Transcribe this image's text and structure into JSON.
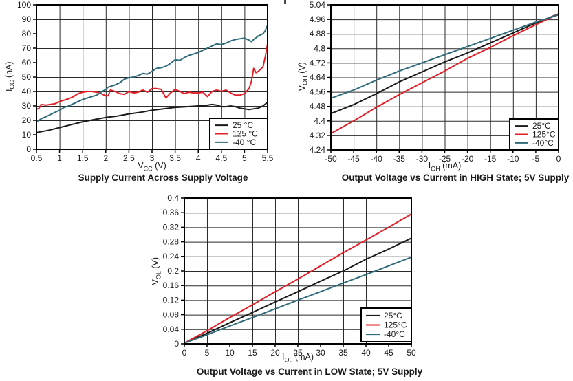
{
  "style": {
    "grid_color": "#2b2b2b",
    "axis_color": "#000000",
    "text_color": "#1a1a1a",
    "legend_bg": "#ffffff",
    "legend_border": "#000000",
    "series_black": "#1a1a1a",
    "series_red": "#e21f26",
    "series_teal": "#2f6b7a"
  },
  "chart_data": [
    {
      "type": "line",
      "title": "Supply Current Across Supply Voltage",
      "xlabel": {
        "sym": "V",
        "sub": "CC",
        "unit": " (V)"
      },
      "ylabel": {
        "sym": "I",
        "sub": "CC",
        "unit": " (nA)"
      },
      "xlim": [
        0.5,
        5.5
      ],
      "ylim": [
        0,
        100
      ],
      "xtick_values": [
        0.5,
        1,
        1.5,
        2,
        2.5,
        3,
        3.5,
        4,
        4.5,
        5,
        5.5
      ],
      "xtick_labels": [
        "0.5",
        "1",
        "1.5",
        "2",
        "2.5",
        "3",
        "3.5",
        "4",
        "4.5",
        "5",
        "5.5"
      ],
      "ytick_values": [
        0,
        10,
        20,
        30,
        40,
        50,
        60,
        70,
        80,
        90,
        100
      ],
      "ytick_labels": [
        "0",
        "10",
        "20",
        "30",
        "40",
        "50",
        "60",
        "70",
        "80",
        "90",
        "100"
      ],
      "grid": true,
      "legend_position": "lower right",
      "series": [
        {
          "name": "25 °C",
          "color": "#1a1a1a",
          "x": [
            0.5,
            0.75,
            1,
            1.25,
            1.5,
            1.75,
            2,
            2.25,
            2.5,
            2.75,
            3,
            3.25,
            3.5,
            3.75,
            4,
            4.1,
            4.2,
            4.3,
            4.4,
            4.5,
            4.6,
            4.7,
            4.8,
            4.9,
            5,
            5.1,
            5.2,
            5.3,
            5.4,
            5.5
          ],
          "y": [
            11.5,
            13,
            15,
            17,
            19,
            20.5,
            22,
            23,
            24.5,
            25.5,
            27,
            28,
            29,
            29.5,
            30,
            30,
            30.5,
            31,
            30.5,
            29.5,
            29.5,
            30,
            29.5,
            28.5,
            28,
            27.5,
            28,
            28.5,
            30,
            32.5
          ]
        },
        {
          "name": "125 °C",
          "color": "#e21f26",
          "x": [
            0.5,
            0.55,
            0.6,
            0.7,
            0.8,
            0.9,
            1,
            1.1,
            1.2,
            1.3,
            1.4,
            1.5,
            1.6,
            1.7,
            1.8,
            1.9,
            2,
            2.05,
            2.1,
            2.2,
            2.3,
            2.4,
            2.5,
            2.6,
            2.7,
            2.8,
            2.9,
            3,
            3.1,
            3.2,
            3.3,
            3.4,
            3.5,
            3.6,
            3.7,
            3.8,
            3.9,
            4,
            4.1,
            4.2,
            4.3,
            4.4,
            4.5,
            4.6,
            4.7,
            4.8,
            4.9,
            5,
            5.1,
            5.15,
            5.2,
            5.25,
            5.3,
            5.4,
            5.45,
            5.5
          ],
          "y": [
            28,
            28,
            31,
            30.5,
            31,
            31.5,
            33,
            34,
            35,
            36.5,
            38.5,
            39.5,
            40,
            40,
            39.5,
            38.5,
            37,
            37,
            41,
            40,
            38.5,
            38,
            40,
            39,
            39.5,
            41,
            39.5,
            42,
            42,
            41.5,
            35.5,
            39,
            41.5,
            40,
            38.5,
            39.5,
            39,
            39,
            39.5,
            36.5,
            40,
            41,
            40,
            41,
            39,
            37.5,
            37.5,
            38.5,
            42,
            47,
            56,
            53,
            54,
            57,
            64,
            73
          ]
        },
        {
          "name": "-40 °C",
          "color": "#2f6b7a",
          "x": [
            0.5,
            0.6,
            0.7,
            0.8,
            0.9,
            1,
            1.1,
            1.2,
            1.3,
            1.4,
            1.5,
            1.6,
            1.7,
            1.8,
            1.9,
            2,
            2.05,
            2.1,
            2.2,
            2.3,
            2.4,
            2.5,
            2.6,
            2.7,
            2.8,
            2.9,
            3,
            3.1,
            3.2,
            3.3,
            3.4,
            3.5,
            3.6,
            3.7,
            3.8,
            3.9,
            4,
            4.1,
            4.2,
            4.3,
            4.4,
            4.5,
            4.6,
            4.7,
            4.8,
            4.9,
            5,
            5.1,
            5.15,
            5.2,
            5.3,
            5.4,
            5.45,
            5.5
          ],
          "y": [
            19,
            21,
            22.5,
            24,
            25.5,
            27,
            29,
            30,
            31.5,
            33,
            34.5,
            35.5,
            36.5,
            37.5,
            39.5,
            41.5,
            43,
            43.5,
            44.5,
            46,
            48.5,
            49.5,
            50,
            51,
            52.5,
            52,
            54,
            56,
            56.5,
            57.5,
            59.5,
            62,
            61.5,
            63.5,
            65,
            66,
            67,
            68.5,
            70,
            71.5,
            73,
            72.5,
            73.5,
            75,
            76,
            76.5,
            77,
            75.5,
            74.5,
            76,
            78.5,
            80,
            82,
            86
          ]
        }
      ]
    },
    {
      "type": "line",
      "title": "Output Voltage vs Current in HIGH State; 5V Supply",
      "xlabel": {
        "sym": "I",
        "sub": "OH",
        "unit": " (mA)"
      },
      "ylabel": {
        "sym": "V",
        "sub": "OH",
        "unit": " (V)"
      },
      "xlim": [
        -50,
        0
      ],
      "ylim": [
        4.24,
        5.04
      ],
      "xtick_values": [
        -50,
        -45,
        -40,
        -35,
        -30,
        -25,
        -20,
        -15,
        -10,
        -5,
        0
      ],
      "xtick_labels": [
        "-50",
        "-45",
        "-40",
        "-35",
        "-30",
        "-25",
        "-20",
        "-15",
        "-10",
        "-5",
        "0"
      ],
      "ytick_values": [
        4.24,
        4.32,
        4.4,
        4.48,
        4.56,
        4.64,
        4.72,
        4.8,
        4.88,
        4.96,
        5.04
      ],
      "ytick_labels": [
        "4.24",
        "4.32",
        "4.4",
        "4.48",
        "4.56",
        "4.64",
        "4.72",
        "4.8",
        "4.88",
        "4.96",
        "5.04"
      ],
      "grid": true,
      "legend_position": "lower right",
      "series": [
        {
          "name": "25°C",
          "color": "#1a1a1a",
          "x": [
            -50,
            -45,
            -40,
            -35,
            -30,
            -25,
            -20,
            -15,
            -10,
            -5,
            0
          ],
          "y": [
            4.44,
            4.49,
            4.55,
            4.615,
            4.67,
            4.725,
            4.775,
            4.83,
            4.885,
            4.94,
            4.99
          ]
        },
        {
          "name": "125°C",
          "color": "#e21f26",
          "x": [
            -50,
            -45,
            -40,
            -35,
            -30,
            -25,
            -20,
            -15,
            -10,
            -5,
            0
          ],
          "y": [
            4.33,
            4.4,
            4.475,
            4.545,
            4.61,
            4.675,
            4.745,
            4.805,
            4.87,
            4.93,
            4.99
          ]
        },
        {
          "name": "-40°C",
          "color": "#2f6b7a",
          "x": [
            -50,
            -45,
            -40,
            -35,
            -30,
            -25,
            -20,
            -15,
            -10,
            -5,
            0
          ],
          "y": [
            4.525,
            4.57,
            4.625,
            4.675,
            4.72,
            4.765,
            4.81,
            4.855,
            4.9,
            4.945,
            4.985
          ]
        }
      ]
    },
    {
      "type": "line",
      "title": "Output Voltage vs Current in LOW State; 5V Supply",
      "xlabel": {
        "sym": "I",
        "sub": "OL",
        "unit": " (mA)"
      },
      "ylabel": {
        "sym": "V",
        "sub": "OL",
        "unit": " (V)"
      },
      "xlim": [
        0,
        50
      ],
      "ylim": [
        0,
        0.4
      ],
      "xtick_values": [
        0,
        5,
        10,
        15,
        20,
        25,
        30,
        35,
        40,
        45,
        50
      ],
      "xtick_labels": [
        "0",
        "5",
        "10",
        "15",
        "20",
        "25",
        "30",
        "35",
        "40",
        "45",
        "50"
      ],
      "ytick_values": [
        0,
        0.04,
        0.08,
        0.12,
        0.16,
        0.2,
        0.24,
        0.28,
        0.32,
        0.36,
        0.4
      ],
      "ytick_labels": [
        "0",
        "0.04",
        "0.08",
        "0.12",
        "0.16",
        "0.2",
        "0.24",
        "0.28",
        "0.32",
        "0.36",
        "0.4"
      ],
      "grid": true,
      "legend_position": "lower right",
      "series": [
        {
          "name": "25°C",
          "color": "#1a1a1a",
          "x": [
            0,
            5,
            10,
            15,
            20,
            25,
            30,
            35,
            40,
            45,
            50
          ],
          "y": [
            0.002,
            0.029,
            0.058,
            0.086,
            0.115,
            0.143,
            0.172,
            0.2,
            0.232,
            0.26,
            0.29
          ]
        },
        {
          "name": "125°C",
          "color": "#e21f26",
          "x": [
            0,
            5,
            10,
            15,
            20,
            25,
            30,
            35,
            40,
            45,
            50
          ],
          "y": [
            0.002,
            0.036,
            0.072,
            0.107,
            0.143,
            0.178,
            0.214,
            0.25,
            0.285,
            0.32,
            0.356
          ]
        },
        {
          "name": "-40°C",
          "color": "#2f6b7a",
          "x": [
            0,
            5,
            10,
            15,
            20,
            25,
            30,
            35,
            40,
            45,
            50
          ],
          "y": [
            0.002,
            0.025,
            0.049,
            0.072,
            0.096,
            0.12,
            0.143,
            0.167,
            0.19,
            0.214,
            0.238
          ]
        }
      ]
    }
  ]
}
